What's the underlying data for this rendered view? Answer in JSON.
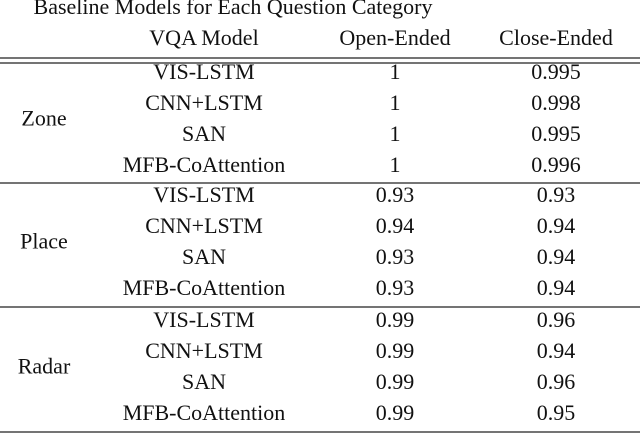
{
  "title": "Baseline Models for Each Question Category",
  "table": {
    "header": [
      "VQA Model",
      "Open-Ended",
      "Close-Ended"
    ],
    "groups": [
      {
        "label": "Zone",
        "rows": [
          [
            "VIS-LSTM",
            "1",
            "0.995"
          ],
          [
            "CNN+LSTM",
            "1",
            "0.998"
          ],
          [
            "SAN",
            "1",
            "0.995"
          ],
          [
            "MFB-CoAttention",
            "1",
            "0.996"
          ]
        ]
      },
      {
        "label": "Place",
        "rows": [
          [
            "VIS-LSTM",
            "0.93",
            "0.93"
          ],
          [
            "CNN+LSTM",
            "0.94",
            "0.94"
          ],
          [
            "SAN",
            "0.93",
            "0.94"
          ],
          [
            "MFB-CoAttention",
            "0.93",
            "0.94"
          ]
        ]
      },
      {
        "label": "Radar",
        "rows": [
          [
            "VIS-LSTM",
            "0.99",
            "0.96"
          ],
          [
            "CNN+LSTM",
            "0.99",
            "0.94"
          ],
          [
            "SAN",
            "0.99",
            "0.96"
          ],
          [
            "MFB-CoAttention",
            "0.99",
            "0.95"
          ]
        ]
      }
    ]
  }
}
